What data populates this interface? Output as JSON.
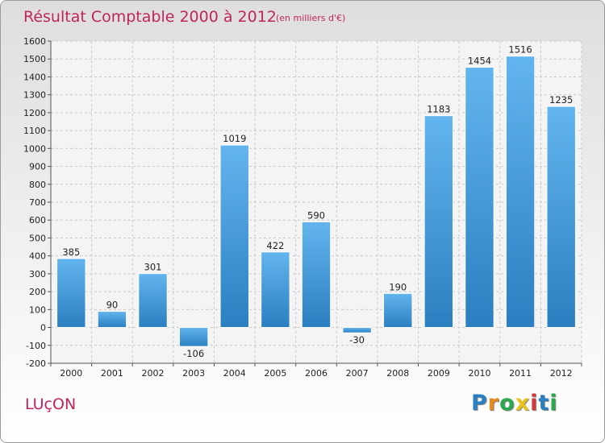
{
  "colors": {
    "accent": "#c0245e",
    "bar_light": "#5fb2ec",
    "bar_dark": "#2a7fc1",
    "grid": "#c8c8c8"
  },
  "footer": {
    "city": "LUçON",
    "brand": "Proxiti"
  },
  "brand_letters": [
    {
      "ch": "P",
      "color": "#2a7fc1"
    },
    {
      "ch": "r",
      "color": "#e88a1a"
    },
    {
      "ch": "o",
      "color": "#2aa84a"
    },
    {
      "ch": "x",
      "color": "#e8c21a"
    },
    {
      "ch": "i",
      "color": "#d43a3a"
    },
    {
      "ch": "t",
      "color": "#2a7fc1"
    },
    {
      "ch": "i",
      "color": "#2aa84a"
    }
  ],
  "chart_data": {
    "type": "bar",
    "title": "Résultat Comptable 2000 à 2012",
    "subtitle": "(en milliers d'€)",
    "xlabel": "",
    "ylabel": "",
    "categories": [
      "2000",
      "2001",
      "2002",
      "2003",
      "2004",
      "2005",
      "2006",
      "2007",
      "2008",
      "2009",
      "2010",
      "2011",
      "2012"
    ],
    "values": [
      385,
      90,
      301,
      -106,
      1019,
      422,
      590,
      -30,
      190,
      1183,
      1454,
      1516,
      1235
    ],
    "value_labels": [
      "385",
      "90",
      "301",
      "-106",
      "1019",
      "422",
      "590",
      "-30",
      "190",
      "1183",
      "1454",
      "1516",
      "1235"
    ],
    "ylim": [
      -200,
      1600
    ],
    "yticks": [
      -200,
      -100,
      0,
      100,
      200,
      300,
      400,
      500,
      600,
      700,
      800,
      900,
      1000,
      1100,
      1200,
      1300,
      1400,
      1500,
      1600
    ],
    "grid": true,
    "legend": "none"
  }
}
